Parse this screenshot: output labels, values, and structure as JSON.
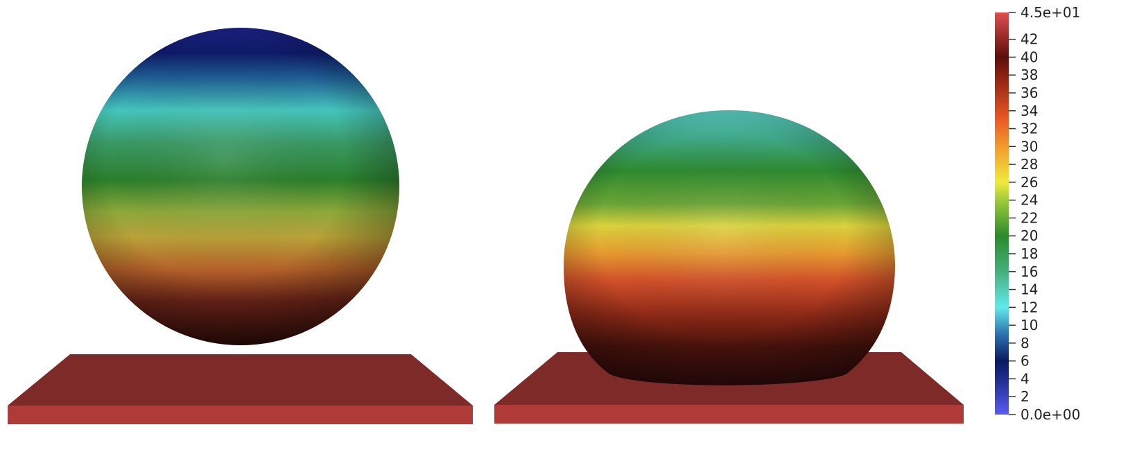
{
  "scene": {
    "background": "#ffffff",
    "objects": [
      {
        "name": "left-sphere",
        "description": "undeformed sphere"
      },
      {
        "name": "right-droplet",
        "description": "deformed droplet resting on plate"
      }
    ],
    "plate_colors": {
      "top": "#7e2a28",
      "front": "#b03a37"
    }
  },
  "colorbar": {
    "min": 0,
    "max": 45,
    "max_label": "4.5e+01",
    "min_label": "0.0e+00",
    "tick_values": [
      42,
      40,
      38,
      36,
      34,
      32,
      30,
      28,
      26,
      24,
      22,
      20,
      18,
      16,
      14,
      12,
      10,
      8,
      6,
      4,
      2
    ],
    "tick_labels": [
      "42",
      "40",
      "38",
      "36",
      "34",
      "32",
      "30",
      "28",
      "26",
      "24",
      "22",
      "20",
      "18",
      "16",
      "14",
      "12",
      "10",
      "8",
      "6",
      "4",
      "2"
    ],
    "color_stops": [
      {
        "value": 0,
        "color": "#5b5bf2"
      },
      {
        "value": 4,
        "color": "#1e2c8c"
      },
      {
        "value": 6,
        "color": "#0b1a5e"
      },
      {
        "value": 9,
        "color": "#2b72b0"
      },
      {
        "value": 12,
        "color": "#63e9ea"
      },
      {
        "value": 16,
        "color": "#46b07c"
      },
      {
        "value": 20,
        "color": "#2a8a2c"
      },
      {
        "value": 24,
        "color": "#9fcb3a"
      },
      {
        "value": 26,
        "color": "#f0ea3c"
      },
      {
        "value": 30,
        "color": "#f29a2e"
      },
      {
        "value": 33,
        "color": "#ea5a24"
      },
      {
        "value": 38,
        "color": "#8a1f12"
      },
      {
        "value": 40,
        "color": "#5c0f0c"
      },
      {
        "value": 45,
        "color": "#e04e4e"
      }
    ]
  }
}
